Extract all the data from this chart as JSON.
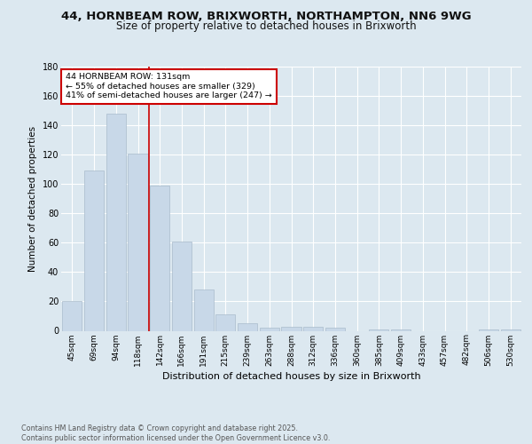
{
  "title_line1": "44, HORNBEAM ROW, BRIXWORTH, NORTHAMPTON, NN6 9WG",
  "title_line2": "Size of property relative to detached houses in Brixworth",
  "xlabel": "Distribution of detached houses by size in Brixworth",
  "ylabel": "Number of detached properties",
  "bar_labels": [
    "45sqm",
    "69sqm",
    "94sqm",
    "118sqm",
    "142sqm",
    "166sqm",
    "191sqm",
    "215sqm",
    "239sqm",
    "263sqm",
    "288sqm",
    "312sqm",
    "336sqm",
    "360sqm",
    "385sqm",
    "409sqm",
    "433sqm",
    "457sqm",
    "482sqm",
    "506sqm",
    "530sqm"
  ],
  "bar_values": [
    20,
    109,
    148,
    121,
    99,
    61,
    28,
    11,
    5,
    2,
    3,
    3,
    2,
    0,
    1,
    1,
    0,
    0,
    0,
    1,
    1
  ],
  "bar_color": "#c8d8e8",
  "bar_edge_color": "#aabccc",
  "ylim": [
    0,
    180
  ],
  "yticks": [
    0,
    20,
    40,
    60,
    80,
    100,
    120,
    140,
    160,
    180
  ],
  "red_line_x": 3.5,
  "annotation_text": "44 HORNBEAM ROW: 131sqm\n← 55% of detached houses are smaller (329)\n41% of semi-detached houses are larger (247) →",
  "annotation_box_color": "#ffffff",
  "annotation_box_edge_color": "#cc0000",
  "footer": "Contains HM Land Registry data © Crown copyright and database right 2025.\nContains public sector information licensed under the Open Government Licence v3.0.",
  "background_color": "#dce8f0",
  "plot_bg_color": "#dce8f0",
  "grid_color": "#ffffff"
}
